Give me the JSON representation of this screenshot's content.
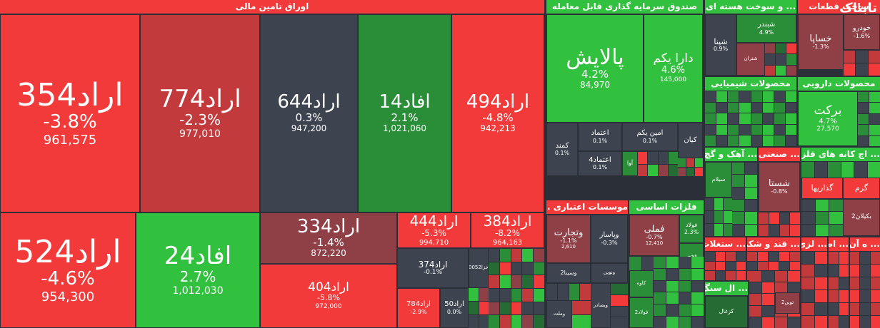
{
  "sections": {
    "bonds": "اوراق تامین مالی",
    "etf": "صندوق سرمایه گذاری قابل معامله",
    "construction": "... و سوخت هسته ای",
    "auto_parts": "ساخت قطعات",
    "chemical": "محصولات شیمیایی",
    "pharma": "محصولات دارویی",
    "cement": "... آهک و گچ",
    "industrial": "... صنعتی",
    "mining": "... اج کانه های فلزی",
    "credit": "موسسات اعتباری ...",
    "metals": "فلزات اساسی",
    "real_estate": "... ستغلات",
    "sugar": "... قند و شکر",
    "stone": "... ال سنگ",
    "misc1": "... لزی",
    "misc2": "... اطلا",
    "misc3": "... ه آن",
    "misc4": "گرم",
    "misc5": "گذاریها"
  },
  "logo": {
    "brand": "تابناک",
    "sub": "خودرو"
  },
  "tiles": {
    "arad354": {
      "name": "اراد354",
      "pct": "-3.8%",
      "vol": "961,575"
    },
    "arad774": {
      "name": "اراد774",
      "pct": "-2.3%",
      "vol": "977,010"
    },
    "arad644": {
      "name": "اراد644",
      "pct": "0.3%",
      "vol": "947,200"
    },
    "afad14": {
      "name": "افاد14",
      "pct": "2.1%",
      "vol": "1,021,060"
    },
    "arad494": {
      "name": "اراد494",
      "pct": "-4.8%",
      "vol": "942,213"
    },
    "arad524": {
      "name": "اراد524",
      "pct": "-4.6%",
      "vol": "954,300"
    },
    "afad24": {
      "name": "افاد24",
      "pct": "2.7%",
      "vol": "1,012,030"
    },
    "arad334": {
      "name": "اراد334",
      "pct": "-1.4%",
      "vol": "872,220"
    },
    "arad444": {
      "name": "اراد444",
      "pct": "-5.3%",
      "vol": "994,710"
    },
    "arad384": {
      "name": "اراد384",
      "pct": "-8.2%",
      "vol": "964,163"
    },
    "arad404": {
      "name": "اراد404",
      "pct": "-5.8%",
      "vol": "972,000"
    },
    "arad374": {
      "name": "اراد374",
      "pct": "-0.1%"
    },
    "arad784": {
      "name": "اراد784",
      "pct": "-2.9%"
    },
    "arad50": {
      "name": "اراد50",
      "pct": "0.0%"
    },
    "khazaneh": {
      "name": "خزا0052"
    },
    "palayesh": {
      "name": "پالایش",
      "pct": "4.2%",
      "vol": "84,970"
    },
    "darayekom": {
      "name": "دارا یکم",
      "pct": "4.6%",
      "vol": "145,000"
    },
    "kamand": {
      "name": "کمند",
      "pct": "0.1%"
    },
    "etemad": {
      "name": "اعتماد",
      "pct": "0.1%"
    },
    "aminyekom": {
      "name": "امین یکم",
      "pct": "0.1%"
    },
    "kian": {
      "name": "کیان"
    },
    "etemad4": {
      "name": "اعتماد4",
      "pct": "0.1%"
    },
    "ava": {
      "name": "آوا"
    },
    "shpena": {
      "name": "شپنا",
      "pct": "0.9%"
    },
    "shebandar": {
      "name": "شبندر",
      "pct": "4.9%"
    },
    "shetran": {
      "name": "شتران"
    },
    "khsapa": {
      "name": "خساپا",
      "pct": "-1.3%"
    },
    "khodro": {
      "pct": "-1.6%"
    },
    "barkat": {
      "name": "برکت",
      "pct": "4.7%",
      "vol": "27,570"
    },
    "sylam": {
      "name": "سیلام"
    },
    "shasta": {
      "name": "شستا",
      "pct": "-0.8%"
    },
    "bkilan2": {
      "name": "بکیلان2"
    },
    "vtejarat": {
      "name": "وتجارت",
      "pct": "-1.1%",
      "vol": "2,610"
    },
    "vpasar": {
      "name": "وپاسار",
      "pct": "-0.3%"
    },
    "vsina2": {
      "name": "وسینا2"
    },
    "vnovin": {
      "name": "ونوین"
    },
    "vsadr": {
      "name": "وبصادر"
    },
    "vmellat": {
      "name": "وملت"
    },
    "fameli": {
      "name": "فملی",
      "pct": "-0.7%",
      "vol": "12,410"
    },
    "foolad": {
      "name": "فولاد",
      "pct": "2.3%"
    },
    "fakhooz": {
      "name": "فخوز"
    },
    "kaveh": {
      "name": "کاوه"
    },
    "foolad2": {
      "name": "فولاد2"
    },
    "kazgal": {
      "name": "کزغال"
    },
    "tavin2": {
      "name": "توین2"
    }
  },
  "colors": {
    "red": "#f23a3a",
    "green": "#32c03f",
    "gray": "#3d4450",
    "background": "#2b2f38"
  }
}
